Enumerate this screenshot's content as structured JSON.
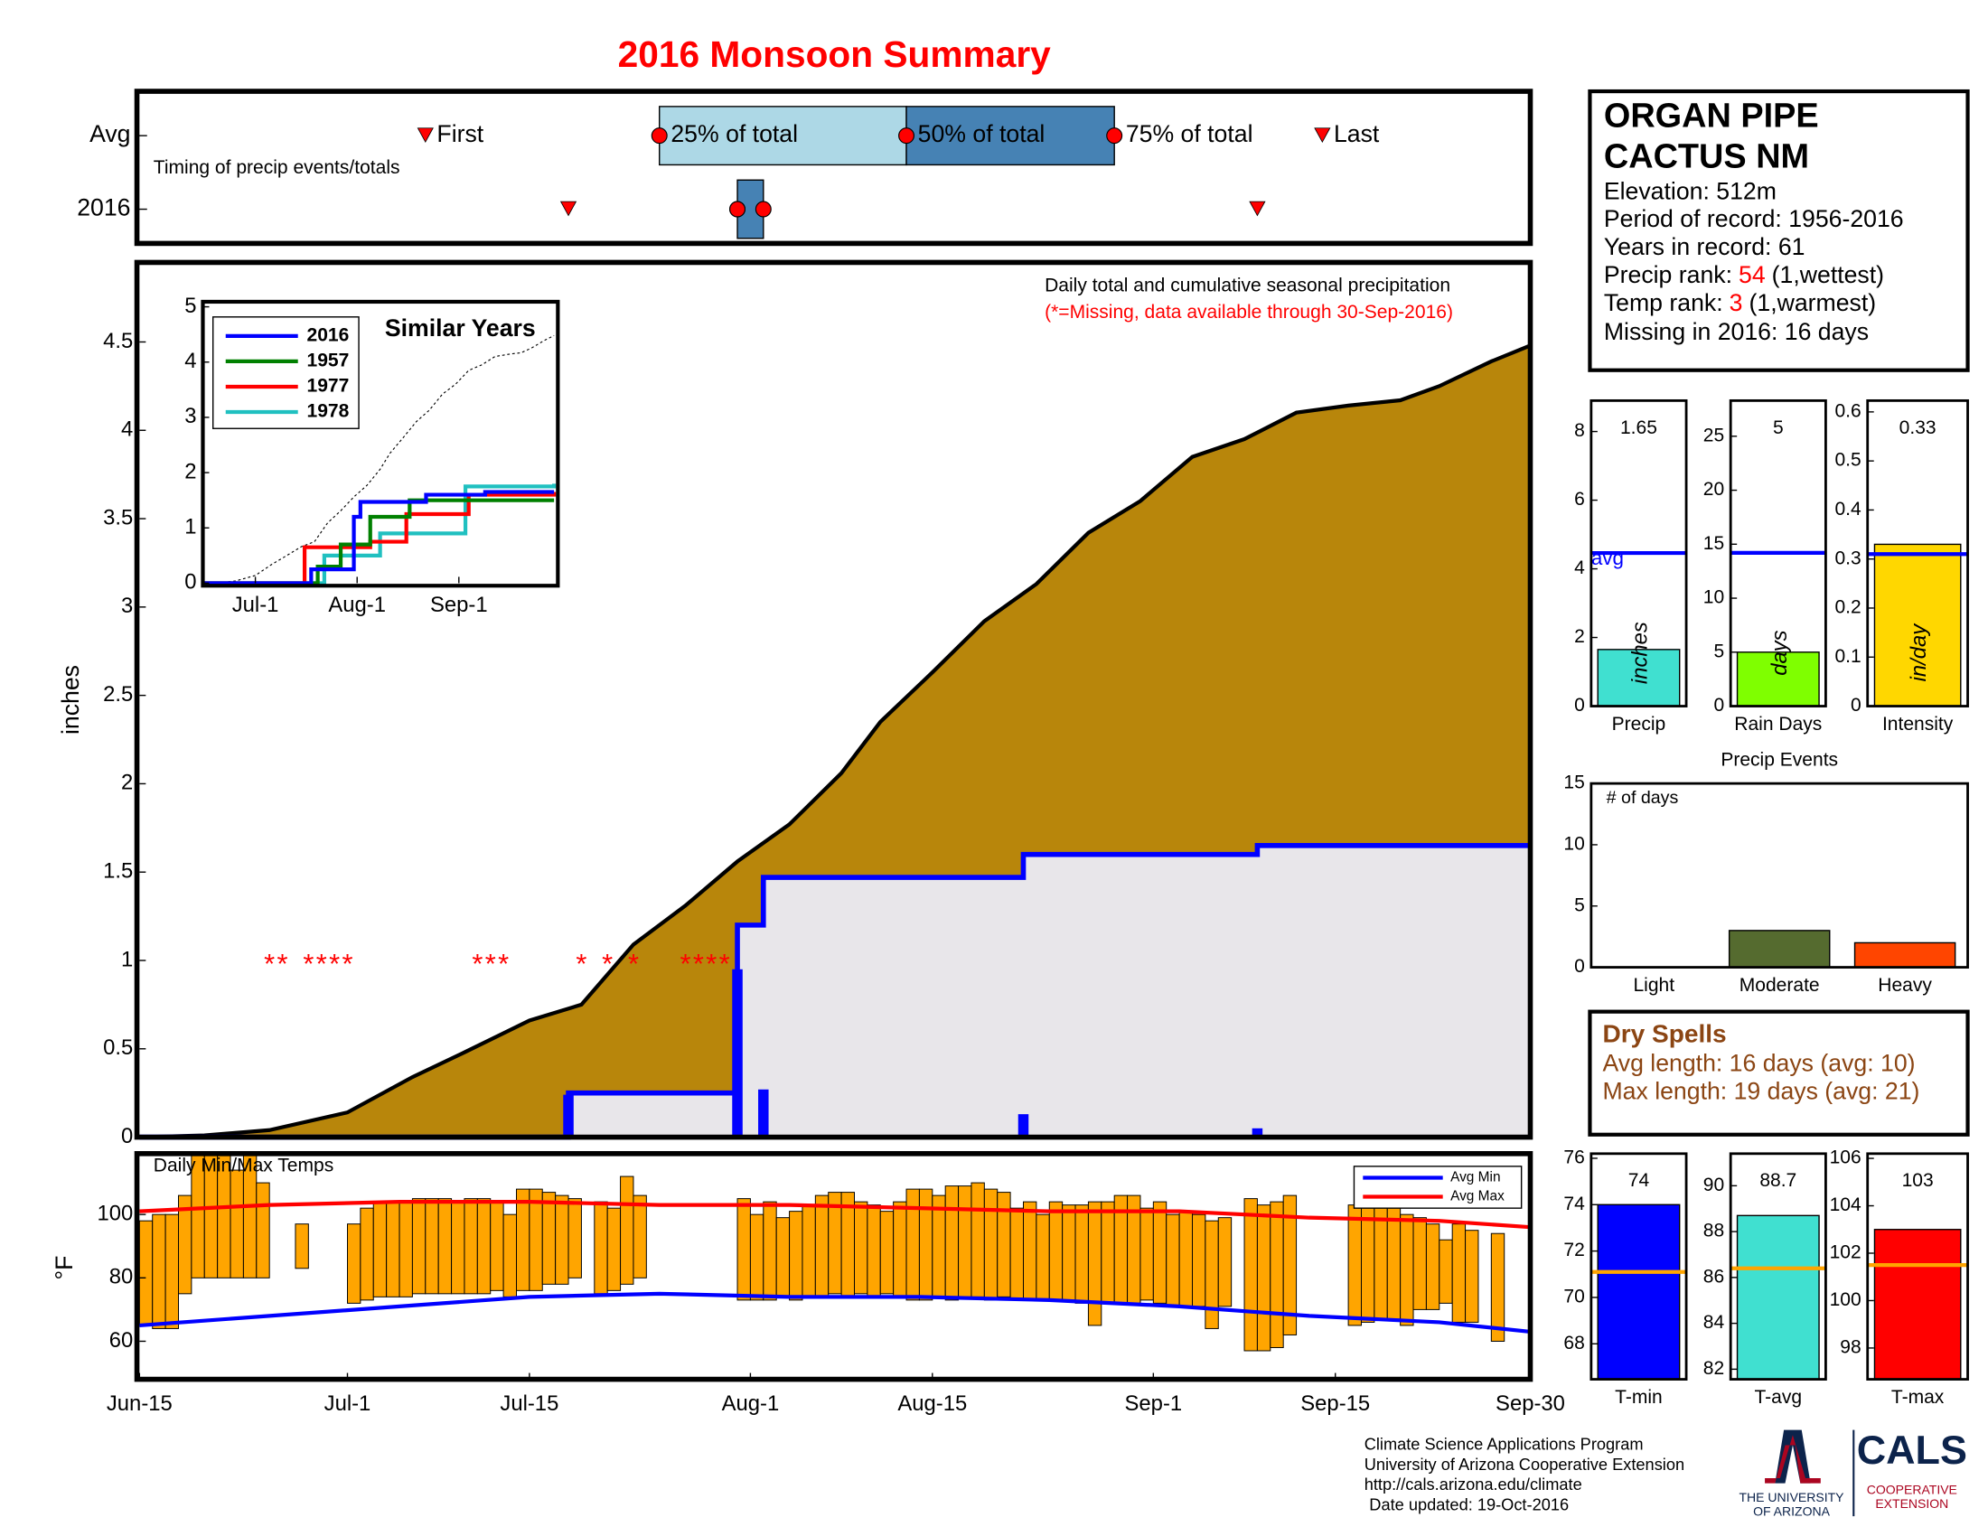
{
  "title": "2016 Monsoon Summary",
  "station": {
    "name_lines": [
      "ORGAN PIPE",
      "CACTUS NM"
    ],
    "lines": [
      "Elevation: 512m",
      "Period of record: 1956-2016",
      "Years in record: 61"
    ],
    "precip_rank": {
      "label": "Precip rank:",
      "value": 54,
      "note": "(1,wettest)"
    },
    "temp_rank": {
      "label": "Temp rank:",
      "value": 3,
      "note": "(1,warmest)"
    },
    "missing": "Missing in 2016: 16 days"
  },
  "dry_spells": {
    "title": "Dry Spells",
    "lines": [
      "Avg length: 16 days (avg: 10)",
      "Max length: 19 days (avg: 21)"
    ]
  },
  "footer": [
    "Climate Science Applications Program",
    "University of Arizona Cooperative Extension",
    "http://cals.arizona.edu/climate",
    "Date updated: 19-Oct-2016"
  ],
  "logos": {
    "ua": [
      "THE UNIVERSITY",
      "OF ARIZONA"
    ],
    "cals": "CALS",
    "cals_sub": [
      "COOPERATIVE",
      "EXTENSION"
    ]
  },
  "chart_data": [
    {
      "type": "timeline",
      "title": "Timing of precip events/totals",
      "xlim": [
        0,
        107
      ],
      "marker_labels": [
        "First",
        "25% of total",
        "50% of total",
        "75% of total",
        "Last"
      ],
      "marker_color": "#ff0000",
      "box_colors": [
        "#add8e6",
        "#4682b4"
      ],
      "series": [
        {
          "name": "Avg",
          "values": [
            22,
            40,
            59,
            75,
            91
          ]
        },
        {
          "name": "2016",
          "values": [
            33,
            46,
            46,
            48,
            86
          ]
        }
      ]
    },
    {
      "type": "area",
      "title": "Daily total and cumulative seasonal precipitation",
      "subtitle": "(*=Missing, data available through 30-Sep-2016)",
      "ylabel": "inches",
      "xlim": [
        0,
        107
      ],
      "ylim": [
        0,
        4.95
      ],
      "yticks": [
        0,
        0.5,
        1,
        1.5,
        2,
        2.5,
        3,
        3.5,
        4,
        4.5
      ],
      "avg_cumulative": {
        "color": "#b8860b",
        "x": [
          0,
          5,
          10,
          16,
          21,
          25,
          30,
          34,
          38,
          42,
          46,
          50,
          54,
          57,
          61,
          65,
          69,
          73,
          77,
          81,
          85,
          89,
          93,
          97,
          100,
          104,
          107
        ],
        "values": [
          0,
          0.01,
          0.04,
          0.14,
          0.34,
          0.48,
          0.66,
          0.75,
          1.09,
          1.31,
          1.56,
          1.77,
          2.06,
          2.35,
          2.63,
          2.92,
          3.13,
          3.42,
          3.6,
          3.85,
          3.95,
          4.1,
          4.14,
          4.17,
          4.25,
          4.39,
          4.48
        ]
      },
      "cumulative_2016": {
        "color": "#0000ff",
        "fill": "#e8e6ea",
        "x": [
          0,
          33,
          46,
          48,
          68,
          86,
          107
        ],
        "values": [
          0,
          0.25,
          1.2,
          1.47,
          1.6,
          1.65,
          1.65
        ]
      },
      "daily_2016": {
        "color": "#0000ff",
        "x": [
          33,
          46,
          48,
          68,
          86
        ],
        "values": [
          0.24,
          0.95,
          0.27,
          0.13,
          0.05
        ]
      },
      "missing": {
        "marker": "*",
        "color": "#ff0000",
        "y": 1,
        "x": [
          10,
          11,
          13,
          14,
          15,
          16,
          26,
          27,
          28,
          34,
          36,
          38,
          42,
          43,
          44,
          45
        ]
      }
    },
    {
      "type": "line",
      "title": "Similar Years",
      "legend": "upper left",
      "xlim": [
        0,
        107
      ],
      "xticks": [
        {
          "value": 16,
          "label": "Jul-1"
        },
        {
          "value": 47,
          "label": "Aug-1"
        },
        {
          "value": 78,
          "label": "Sep-1"
        }
      ],
      "ylim": [
        0,
        5
      ],
      "yticks": [
        0,
        1,
        2,
        3,
        4,
        5
      ],
      "series": [
        {
          "name": "2016",
          "color": "#0000ff",
          "x": [
            0,
            33,
            46,
            48,
            68,
            86,
            107
          ],
          "values": [
            0,
            0.25,
            1.2,
            1.47,
            1.6,
            1.65,
            1.65
          ]
        },
        {
          "name": "1957",
          "color": "#008000",
          "x": [
            0,
            35,
            42,
            51,
            63,
            107
          ],
          "values": [
            0,
            0.3,
            0.7,
            1.2,
            1.5,
            1.5
          ]
        },
        {
          "name": "1977",
          "color": "#ff0000",
          "x": [
            0,
            31,
            51,
            62,
            81,
            107
          ],
          "values": [
            0,
            0.65,
            0.75,
            1.25,
            1.6,
            1.65
          ]
        },
        {
          "name": "1978",
          "color": "#20c0c0",
          "x": [
            0,
            37,
            54,
            80,
            107
          ],
          "values": [
            0,
            0.5,
            0.9,
            1.75,
            1.8
          ]
        }
      ],
      "avg_line": {
        "color": "#000000",
        "x": [
          0,
          5,
          10,
          16,
          21,
          25,
          30,
          34,
          38,
          42,
          46,
          50,
          54,
          57,
          61,
          65,
          69,
          73,
          77,
          81,
          85,
          89,
          93,
          97,
          100,
          104,
          107
        ],
        "values": [
          0,
          0.01,
          0.04,
          0.14,
          0.34,
          0.48,
          0.66,
          0.75,
          1.09,
          1.31,
          1.56,
          1.77,
          2.06,
          2.35,
          2.63,
          2.92,
          3.13,
          3.42,
          3.6,
          3.85,
          3.95,
          4.1,
          4.14,
          4.17,
          4.25,
          4.39,
          4.48
        ]
      }
    },
    {
      "type": "bar",
      "categories": [
        "Precip"
      ],
      "values": [
        1.65
      ],
      "show_values": true,
      "color": "#40e0d0",
      "ylim": [
        0,
        8.9
      ],
      "yticks": [
        0,
        2,
        4,
        6,
        8
      ],
      "avg_line": 4.46,
      "avg_label": "avg",
      "avg_color": "#0000ff",
      "unit_label": "inches"
    },
    {
      "type": "bar",
      "categories": [
        "Rain Days"
      ],
      "values": [
        5
      ],
      "show_values": true,
      "color": "#7fff00",
      "ylim": [
        0,
        28.3
      ],
      "yticks": [
        0,
        5,
        10,
        15,
        20,
        25
      ],
      "avg_line": 14.2,
      "avg_color": "#0000ff",
      "unit_label": "days"
    },
    {
      "type": "bar",
      "categories": [
        "Intensity"
      ],
      "values": [
        0.33
      ],
      "show_values": true,
      "color": "#ffd700",
      "ylim": [
        0,
        0.623
      ],
      "yticks": [
        0,
        0.1,
        0.2,
        0.3,
        0.4,
        0.5,
        0.6
      ],
      "avg_line": 0.31,
      "avg_color": "#0000ff",
      "unit_label": "in/day"
    },
    {
      "type": "bar",
      "title": "Precip Events",
      "ylabel": "# of days",
      "categories": [
        "Light",
        "Moderate",
        "Heavy"
      ],
      "values": [
        0,
        3,
        2
      ],
      "colors": [
        "#9acd32",
        "#556b2f",
        "#ff4500"
      ],
      "ylim": [
        0,
        15
      ],
      "yticks": [
        0,
        5,
        10,
        15
      ]
    },
    {
      "type": "floating_bar",
      "title": "Daily Min/Max Temps",
      "ylabel": "°F",
      "legend": "upper right",
      "xlim": [
        0,
        107
      ],
      "xticks": [
        {
          "value": 0,
          "label": "Jun-15"
        },
        {
          "value": 16,
          "label": "Jul-1"
        },
        {
          "value": 30,
          "label": "Jul-15"
        },
        {
          "value": 47,
          "label": "Aug-1"
        },
        {
          "value": 61,
          "label": "Aug-15"
        },
        {
          "value": 78,
          "label": "Sep-1"
        },
        {
          "value": 92,
          "label": "Sep-15"
        },
        {
          "value": 107,
          "label": "Sep-30"
        }
      ],
      "ylim": [
        48,
        119.2
      ],
      "yticks": [
        60,
        80,
        100
      ],
      "bars": {
        "color": "#ffa500",
        "x": [
          0,
          1,
          2,
          3,
          4,
          5,
          6,
          7,
          8,
          9,
          10,
          11,
          12,
          13,
          14,
          15,
          16,
          17,
          18,
          19,
          20,
          21,
          22,
          23,
          24,
          25,
          26,
          27,
          28,
          29,
          30,
          31,
          32,
          33,
          34,
          35,
          36,
          37,
          38,
          39,
          40,
          41,
          42,
          43,
          44,
          45,
          46,
          47,
          48,
          49,
          50,
          51,
          52,
          53,
          54,
          55,
          56,
          57,
          58,
          59,
          60,
          61,
          62,
          63,
          64,
          65,
          66,
          67,
          68,
          69,
          70,
          71,
          72,
          73,
          74,
          75,
          76,
          77,
          78,
          79,
          80,
          81,
          82,
          83,
          84,
          85,
          86,
          87,
          88,
          89,
          90,
          91,
          92,
          93,
          94,
          95,
          96,
          97,
          98,
          99,
          100,
          101,
          102,
          103,
          104,
          105,
          106
        ],
        "min": [
          65,
          64,
          64,
          75,
          80,
          80,
          80,
          80,
          80,
          80,
          null,
          null,
          83,
          null,
          null,
          null,
          72,
          73,
          74,
          74,
          74,
          75,
          75,
          75,
          75,
          75,
          75,
          76,
          74,
          76,
          76,
          78,
          78,
          80,
          null,
          75,
          76,
          78,
          80,
          null,
          null,
          null,
          null,
          null,
          null,
          null,
          73,
          73,
          73,
          74,
          73,
          74,
          74,
          75,
          74,
          75,
          74,
          75,
          74,
          73,
          73,
          74,
          73,
          74,
          74,
          73,
          74,
          73,
          73,
          73,
          73,
          73,
          72,
          65,
          72,
          72,
          72,
          73,
          72,
          71,
          71,
          71,
          64,
          71,
          null,
          57,
          57,
          58,
          62,
          null,
          null,
          null,
          null,
          65,
          66,
          67,
          67,
          65,
          70,
          70,
          72,
          66,
          66,
          null,
          60,
          null,
          null
        ],
        "max": [
          98,
          100,
          100,
          106,
          119,
          119,
          119,
          114,
          119,
          110,
          null,
          null,
          97,
          null,
          null,
          null,
          97,
          102,
          104,
          104,
          104,
          105,
          105,
          105,
          104,
          105,
          105,
          104,
          100,
          108,
          108,
          107,
          106,
          105,
          null,
          104,
          102,
          112,
          106,
          null,
          null,
          null,
          null,
          null,
          null,
          null,
          105,
          100,
          104,
          99,
          101,
          103,
          106,
          107,
          107,
          104,
          103,
          101,
          104,
          108,
          108,
          106,
          109,
          109,
          110,
          108,
          107,
          102,
          104,
          100,
          104,
          103,
          103,
          104,
          104,
          106,
          106,
          102,
          104,
          100,
          101,
          100,
          98,
          99,
          null,
          105,
          103,
          104,
          106,
          null,
          null,
          null,
          null,
          103,
          103,
          104,
          103,
          100,
          99,
          97,
          92,
          97,
          95,
          null,
          94,
          null,
          null
        ]
      },
      "series": [
        {
          "name": "Avg Min",
          "color": "#0000ff",
          "x": [
            0,
            10,
            20,
            30,
            40,
            50,
            60,
            70,
            80,
            90,
            100,
            107
          ],
          "values": [
            65,
            68,
            71,
            74,
            75,
            74,
            74,
            73,
            71,
            68,
            66,
            63
          ]
        },
        {
          "name": "Avg Max",
          "color": "#ff0000",
          "x": [
            0,
            10,
            20,
            30,
            40,
            50,
            60,
            70,
            80,
            90,
            100,
            107
          ],
          "values": [
            101,
            103,
            104,
            104,
            103,
            103,
            102,
            101,
            101,
            99,
            98,
            96
          ]
        }
      ]
    },
    {
      "type": "bar",
      "categories": [
        "T-min"
      ],
      "values": [
        74
      ],
      "show_values": true,
      "color": "#0000ff",
      "ylim": [
        66.47,
        76.2
      ],
      "yticks": [
        68,
        70,
        72,
        74,
        76
      ],
      "avg_line": 71.1,
      "avg_color": "#ffa500"
    },
    {
      "type": "bar",
      "categories": [
        "T-avg"
      ],
      "values": [
        88.7
      ],
      "show_values": true,
      "color": "#40e0d0",
      "ylim": [
        81.56,
        91.4
      ],
      "yticks": [
        82,
        84,
        86,
        88,
        90
      ],
      "avg_line": 86.4,
      "avg_color": "#ffa500"
    },
    {
      "type": "bar",
      "categories": [
        "T-max"
      ],
      "values": [
        103
      ],
      "show_values": true,
      "color": "#ff0000",
      "ylim": [
        96.68,
        106.2
      ],
      "yticks": [
        98,
        100,
        102,
        104,
        106
      ],
      "avg_line": 101.5,
      "avg_color": "#ffa500"
    }
  ]
}
